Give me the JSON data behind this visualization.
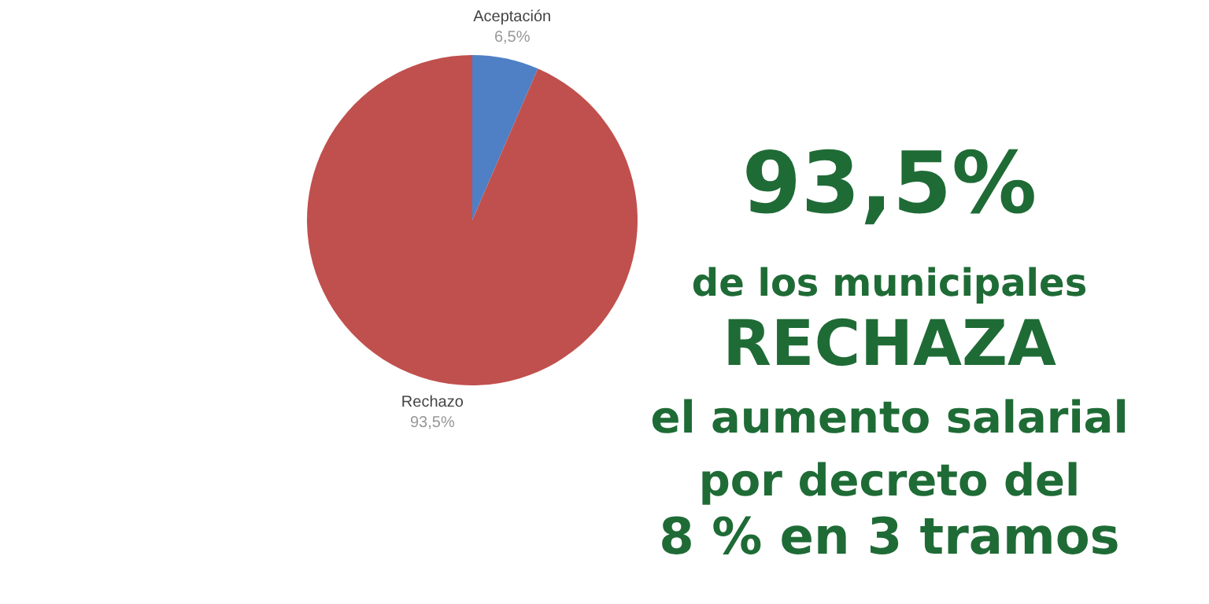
{
  "chart_data": {
    "type": "pie",
    "categories": [
      "Aceptación",
      "Rechazo"
    ],
    "values": [
      6.5,
      93.5
    ],
    "colors": [
      "#4f7fc4",
      "#c0504d"
    ],
    "value_labels": [
      "6,5%",
      "93,5%"
    ],
    "annotations": [
      "93,5%",
      "de los municipales",
      "RECHAZA",
      "el aumento salarial",
      "por decreto del",
      "8 % en 3 tramos"
    ]
  }
}
